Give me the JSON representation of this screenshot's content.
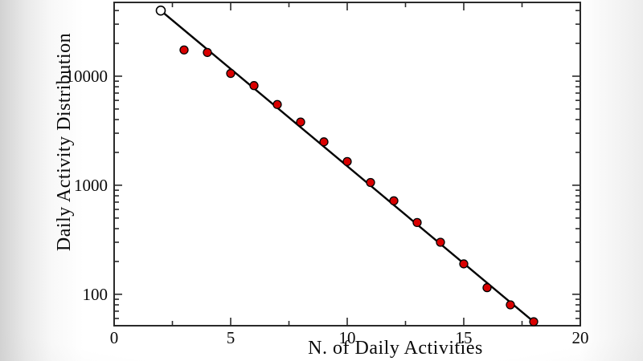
{
  "chart_data": {
    "type": "scatter",
    "title": "",
    "xlabel": "N. of Daily Activities",
    "ylabel": "Daily Activity Distribution",
    "x_scale": "linear",
    "y_scale": "log",
    "xlim": [
      0,
      20
    ],
    "ylim": [
      51.5,
      47500
    ],
    "grid": false,
    "legend": "none",
    "x_major_ticks": [
      0,
      5,
      10,
      15,
      20
    ],
    "x_minor_ticks": [
      2.5,
      7.5,
      12.5,
      17.5
    ],
    "y_major_ticks": [
      100,
      1000,
      10000
    ],
    "y_minor_ticks": [
      60,
      70,
      80,
      90,
      200,
      300,
      400,
      500,
      600,
      700,
      800,
      900,
      2000,
      3000,
      4000,
      5000,
      6000,
      7000,
      8000,
      9000,
      20000,
      30000,
      40000
    ],
    "colors": {
      "marker_fill": "#d90000",
      "marker_edge": "#000000",
      "open_marker_fill": "#ffffff",
      "fit_line": "#000000",
      "axis": "#2a2a2a",
      "text": "#0a0a0a"
    },
    "series": [
      {
        "name": "daily-activity-counts",
        "marker": "filled-circle",
        "points": [
          [
            3,
            17400
          ],
          [
            4,
            16500
          ],
          [
            5,
            10600
          ],
          [
            6,
            8200
          ],
          [
            7,
            5500
          ],
          [
            8,
            3800
          ],
          [
            9,
            2500
          ],
          [
            10,
            1650
          ],
          [
            11,
            1060
          ],
          [
            12,
            720
          ],
          [
            13,
            455
          ],
          [
            14,
            300
          ],
          [
            15,
            190
          ],
          [
            16,
            115
          ],
          [
            17,
            80
          ],
          [
            18,
            56
          ]
        ]
      },
      {
        "name": "excluded-first-point",
        "marker": "open-circle",
        "points": [
          [
            2,
            40000
          ]
        ]
      },
      {
        "name": "exponential-fit-line",
        "marker": "line",
        "from": [
          2,
          40000
        ],
        "to": [
          18,
          56
        ]
      }
    ]
  }
}
